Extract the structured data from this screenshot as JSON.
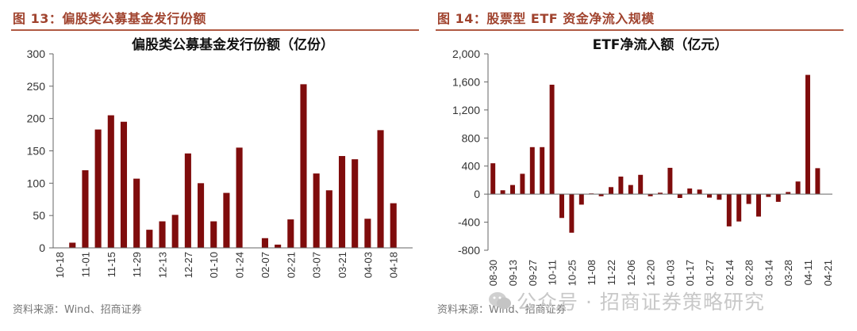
{
  "figures": [
    {
      "title": "图 13：偏股类公募基金发行份额",
      "source": "资料来源：Wind、招商证券"
    },
    {
      "title": "图 14：股票型 ETF 资金净流入规模",
      "source": "资料来源：Wind、招商证券"
    }
  ],
  "watermark": "公众号 · 招商证券策略研究",
  "colors": {
    "bar": "#7f0c0c",
    "accent": "#a0432e",
    "rule": "#b05a43"
  },
  "icons": {
    "watermark": "wechat-icon"
  },
  "chart_data": [
    {
      "type": "bar",
      "title": "偏股类公募基金发行份额（亿份）",
      "xlabel": "",
      "ylabel": "",
      "ylim": [
        0,
        300
      ],
      "yticks": [
        0,
        50,
        100,
        150,
        200,
        250,
        300
      ],
      "ytick_labels": [
        "0",
        "50",
        "100",
        "150",
        "200",
        "250",
        "300"
      ],
      "grid": false,
      "legend": "none",
      "categories": [
        "10-18",
        "10-25",
        "11-01",
        "11-08",
        "11-15",
        "11-22",
        "11-29",
        "12-06",
        "12-13",
        "12-20",
        "12-27",
        "01-03",
        "01-10",
        "01-17",
        "01-24",
        "01-31",
        "02-07",
        "02-14",
        "02-21",
        "02-28",
        "03-07",
        "03-14",
        "03-21",
        "03-28",
        "04-03",
        "04-11",
        "04-18",
        "04-25"
      ],
      "xtick_labels": [
        "10-18",
        "11-01",
        "11-15",
        "11-29",
        "12-13",
        "12-27",
        "01-10",
        "01-24",
        "02-07",
        "02-21",
        "03-07",
        "03-21",
        "04-03",
        "04-18"
      ],
      "values": [
        0,
        8,
        120,
        183,
        205,
        195,
        107,
        28,
        41,
        51,
        146,
        100,
        41,
        85,
        155,
        0,
        15,
        5,
        44,
        253,
        115,
        89,
        142,
        137,
        45,
        182,
        69,
        0
      ]
    },
    {
      "type": "bar",
      "title": "ETF净流入额（亿元）",
      "xlabel": "",
      "ylabel": "",
      "ylim": [
        -800,
        2000
      ],
      "yticks": [
        -800,
        -400,
        0,
        400,
        800,
        1200,
        1600,
        2000
      ],
      "ytick_labels": [
        "-800",
        "-400",
        "0",
        "400",
        "800",
        "1,200",
        "1,600",
        "2,000"
      ],
      "grid": false,
      "legend": "none",
      "categories": [
        "08-30",
        "09-06",
        "09-13",
        "09-20",
        "09-27",
        "10-04",
        "10-11",
        "10-18",
        "10-25",
        "11-01",
        "11-08",
        "11-15",
        "11-22",
        "11-29",
        "12-06",
        "12-13",
        "12-20",
        "12-27",
        "01-03",
        "01-10",
        "01-17",
        "01-24",
        "01-27",
        "02-07",
        "02-14",
        "02-21",
        "02-28",
        "03-07",
        "03-14",
        "03-21",
        "03-28",
        "04-04",
        "04-11",
        "04-18",
        "04-21"
      ],
      "xtick_labels": [
        "08-30",
        "09-13",
        "09-27",
        "10-11",
        "10-25",
        "11-08",
        "11-22",
        "12-06",
        "12-20",
        "01-03",
        "01-17",
        "01-27",
        "02-14",
        "02-28",
        "03-14",
        "03-28",
        "04-11",
        "04-21"
      ],
      "values": [
        440,
        55,
        130,
        290,
        670,
        670,
        1560,
        -340,
        -550,
        -150,
        10,
        -30,
        100,
        250,
        130,
        275,
        -30,
        20,
        375,
        -55,
        80,
        65,
        -50,
        -80,
        -460,
        -390,
        -140,
        -320,
        -40,
        -110,
        30,
        180,
        1700,
        370,
        0
      ]
    }
  ]
}
